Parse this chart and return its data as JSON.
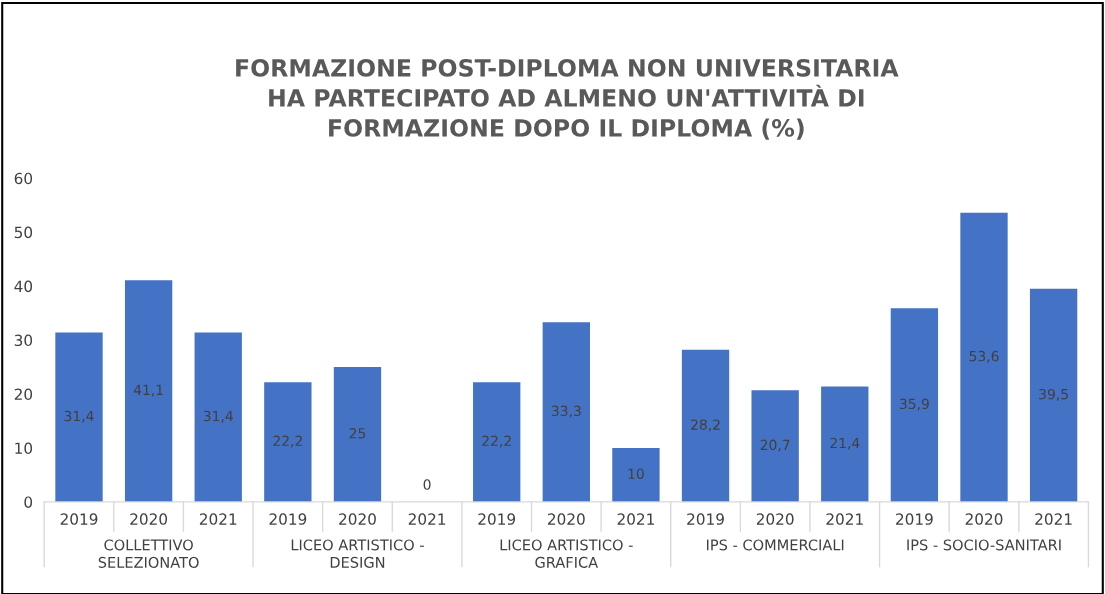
{
  "chart_data": {
    "type": "bar",
    "title": "FORMAZIONE POST-DIPLOMA NON UNIVERSITARIA\nHA PARTECIPATO AD ALMENO UN'ATTIVITÀ DI\nFORMAZIONE DOPO IL DIPLOMA (%)",
    "categories": [
      "2019",
      "2020",
      "2021",
      "2019",
      "2020",
      "2021",
      "2019",
      "2020",
      "2021",
      "2019",
      "2020",
      "2021",
      "2019",
      "2020",
      "2021"
    ],
    "values": [
      31.4,
      41.1,
      31.4,
      22.2,
      25,
      0,
      22.2,
      33.3,
      10,
      28.2,
      20.7,
      21.4,
      35.9,
      53.6,
      39.5
    ],
    "value_labels": [
      "31,4",
      "41,1",
      "31,4",
      "22,2",
      "25",
      "0",
      "22,2",
      "33,3",
      "10",
      "28,2",
      "20,7",
      "21,4",
      "35,9",
      "53,6",
      "39,5"
    ],
    "color": "#4472c4",
    "annotations": [
      "COLLETTIVO\nSELEZIONATO",
      "LICEO ARTISTICO -\nDESIGN",
      "LICEO ARTISTICO -\nGRAFICA",
      "IPS - COMMERCIALI",
      "IPS - SOCIO-SANITARI"
    ],
    "ylim": [
      0,
      60
    ],
    "yticks": [
      0,
      10,
      20,
      30,
      40,
      50,
      60
    ],
    "grid": false
  }
}
